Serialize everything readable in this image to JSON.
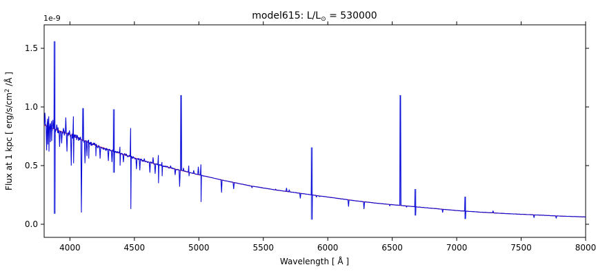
{
  "chart": {
    "title": {
      "prefix": "model615: L/L",
      "odot": "⊙",
      "suffix": " = 530000"
    },
    "xlabel": "Wavelength [ Å ]",
    "ylabel": {
      "prefix": "Flux at 1 kpc [ erg/s/cm",
      "sup": "2",
      "suffix": " /Å ]"
    },
    "offset_label": "1e-9"
  },
  "chart_data": {
    "type": "line",
    "title": "model615: L/L⊙ = 530000",
    "xlabel": "Wavelength [ Å ]",
    "ylabel": "Flux at 1 kpc [ erg/s/cm^2 /Å ]",
    "y_scale_factor": "1e-9",
    "xlim": [
      3800,
      8000
    ],
    "ylim": [
      -0.11,
      1.7
    ],
    "x_ticks": [
      4000,
      4500,
      5000,
      5500,
      6000,
      6500,
      7000,
      7500,
      8000
    ],
    "y_ticks": [
      0.0,
      0.5,
      1.0,
      1.5
    ],
    "grid": false,
    "legend": null,
    "series": [
      {
        "name": "observed spectrum",
        "color": "#0b0bd8",
        "halo_color": "#97a1f2",
        "style": "noisy line with emission spikes and absorption dips"
      },
      {
        "name": "continuum fit",
        "color": "#ee2222",
        "style": "smooth declining continuum"
      }
    ],
    "continuum_points": [
      [
        3800,
        0.845
      ],
      [
        4000,
        0.762
      ],
      [
        4200,
        0.672
      ],
      [
        4400,
        0.6
      ],
      [
        4600,
        0.532
      ],
      [
        4800,
        0.475
      ],
      [
        5000,
        0.422
      ],
      [
        5200,
        0.372
      ],
      [
        5400,
        0.327
      ],
      [
        5600,
        0.292
      ],
      [
        5800,
        0.262
      ],
      [
        6000,
        0.232
      ],
      [
        6200,
        0.202
      ],
      [
        6400,
        0.177
      ],
      [
        6600,
        0.157
      ],
      [
        6800,
        0.137
      ],
      [
        7000,
        0.117
      ],
      [
        7200,
        0.102
      ],
      [
        7400,
        0.09
      ],
      [
        7600,
        0.08
      ],
      [
        7800,
        0.07
      ],
      [
        8000,
        0.062
      ]
    ],
    "noise": {
      "amplitude_at_3800": 0.028,
      "fades_to_zero_at": 5150,
      "sampling_step_A": 3
    },
    "spectral_lines": {
      "format": "[wavelength_A, emission_peak_1e-9, absorption_dip_1e-9, halo_flag]",
      "values": [
        [
          3806,
          0.95,
          null,
          0
        ],
        [
          3819,
          null,
          0.63,
          0
        ],
        [
          3827,
          0.9,
          0.68,
          0
        ],
        [
          3836,
          0.92,
          0.62,
          0
        ],
        [
          3847,
          0.86,
          0.7,
          0
        ],
        [
          3857,
          0.88,
          0.71,
          0
        ],
        [
          3868,
          0.89,
          null,
          0
        ],
        [
          3881,
          1.56,
          0.09,
          1
        ],
        [
          3898,
          0.85,
          null,
          0
        ],
        [
          3920,
          null,
          0.66,
          0
        ],
        [
          3936,
          null,
          0.69,
          0
        ],
        [
          3950,
          0.82,
          null,
          0
        ],
        [
          3968,
          0.91,
          null,
          0
        ],
        [
          3977,
          null,
          0.62,
          0
        ],
        [
          3996,
          0.8,
          null,
          0
        ],
        [
          4010,
          null,
          0.5,
          0
        ],
        [
          4027,
          0.92,
          0.52,
          0
        ],
        [
          4058,
          0.76,
          null,
          0
        ],
        [
          4089,
          null,
          0.1,
          0
        ],
        [
          4102,
          0.99,
          null,
          1
        ],
        [
          4117,
          null,
          0.52,
          0
        ],
        [
          4132,
          null,
          0.58,
          0
        ],
        [
          4145,
          0.72,
          0.56,
          0
        ],
        [
          4200,
          0.68,
          0.58,
          0
        ],
        [
          4234,
          null,
          0.56,
          0
        ],
        [
          4267,
          0.64,
          null,
          0
        ],
        [
          4298,
          null,
          0.54,
          0
        ],
        [
          4326,
          null,
          0.53,
          0
        ],
        [
          4341,
          0.98,
          0.44,
          1
        ],
        [
          4388,
          0.66,
          0.5,
          0
        ],
        [
          4415,
          null,
          0.53,
          0
        ],
        [
          4438,
          0.6,
          null,
          0
        ],
        [
          4471,
          0.82,
          0.13,
          0
        ],
        [
          4516,
          null,
          0.47,
          0
        ],
        [
          4542,
          null,
          0.46,
          0
        ],
        [
          4577,
          0.56,
          null,
          0
        ],
        [
          4620,
          null,
          0.44,
          0
        ],
        [
          4645,
          0.57,
          null,
          0
        ],
        [
          4661,
          null,
          0.43,
          0
        ],
        [
          4686,
          0.59,
          0.35,
          0
        ],
        [
          4714,
          0.53,
          0.41,
          0
        ],
        [
          4781,
          0.5,
          null,
          0
        ],
        [
          4816,
          null,
          0.42,
          0
        ],
        [
          4851,
          null,
          0.32,
          0
        ],
        [
          4862,
          1.1,
          null,
          1
        ],
        [
          4881,
          0.48,
          null,
          0
        ],
        [
          4922,
          0.5,
          0.41,
          0
        ],
        [
          4960,
          0.46,
          null,
          0
        ],
        [
          4996,
          0.49,
          null,
          0
        ],
        [
          5016,
          0.51,
          0.19,
          0
        ],
        [
          5034,
          0.41,
          null,
          0
        ],
        [
          5176,
          null,
          0.27,
          0
        ],
        [
          5270,
          null,
          0.3,
          0
        ],
        [
          5412,
          0.31,
          null,
          0
        ],
        [
          5595,
          0.3,
          null,
          0
        ],
        [
          5680,
          0.31,
          null,
          0
        ],
        [
          5701,
          0.295,
          null,
          0
        ],
        [
          5787,
          null,
          0.22,
          0
        ],
        [
          5876,
          0.655,
          0.04,
          1
        ],
        [
          5912,
          0.23,
          null,
          0
        ],
        [
          5936,
          0.235,
          null,
          0
        ],
        [
          6161,
          null,
          0.15,
          0
        ],
        [
          6281,
          null,
          0.13,
          0
        ],
        [
          6481,
          0.155,
          null,
          0
        ],
        [
          6563,
          1.1,
          null,
          1
        ],
        [
          6611,
          0.145,
          null,
          0
        ],
        [
          6679,
          0.3,
          0.075,
          1
        ],
        [
          6891,
          null,
          0.1,
          0
        ],
        [
          7066,
          0.235,
          0.045,
          1
        ],
        [
          7282,
          0.115,
          null,
          0
        ],
        [
          7600,
          null,
          0.055,
          0
        ],
        [
          7772,
          null,
          0.05,
          0
        ]
      ]
    }
  }
}
